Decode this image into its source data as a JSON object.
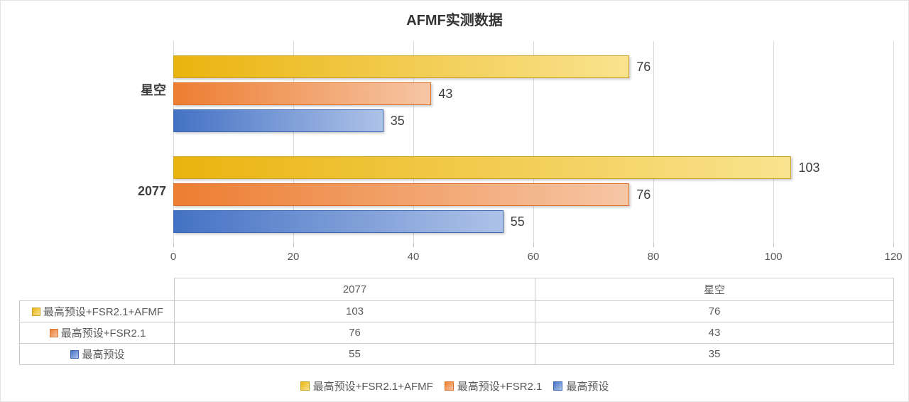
{
  "title": "AFMF实测数据",
  "chart_data": {
    "type": "bar",
    "orientation": "horizontal",
    "title": "AFMF实测数据",
    "categories": [
      "2077",
      "星空"
    ],
    "category_display_order_top_to_bottom": [
      "星空",
      "2077"
    ],
    "series": [
      {
        "name": "最高预设+FSR2.1+AFMF",
        "values": [
          103,
          76
        ],
        "color_start": "#EAB40F",
        "color_end": "#FAE38F",
        "border": "#C9A227"
      },
      {
        "name": "最高预设+FSR2.1",
        "values": [
          76,
          43
        ],
        "color_start": "#ED7D31",
        "color_end": "#F6C6A5",
        "border": "#D9732E"
      },
      {
        "name": "最高预设",
        "values": [
          55,
          35
        ],
        "color_start": "#4472C4",
        "color_end": "#AEC2E8",
        "border": "#3D66B3"
      }
    ],
    "xlabel": "",
    "ylabel": "",
    "xlim": [
      0,
      120
    ],
    "x_ticks": [
      0,
      20,
      40,
      60,
      80,
      100,
      120
    ],
    "grid": true,
    "data_labels": true,
    "data_table_shown": true,
    "legend_position": "bottom"
  },
  "colors": {
    "background": "#FFFFFF",
    "chart_border": "#E3E3E3",
    "gridline": "#D9D9D9",
    "tick": "#BFBFBF",
    "title_text": "#333333",
    "value_label_text": "#3F3F3F",
    "category_label_text": "#3F3F3F",
    "axis_tick_text": "#595959",
    "table_text": "#595959",
    "table_border": "#C9C9C9",
    "legend_text": "#595959"
  }
}
